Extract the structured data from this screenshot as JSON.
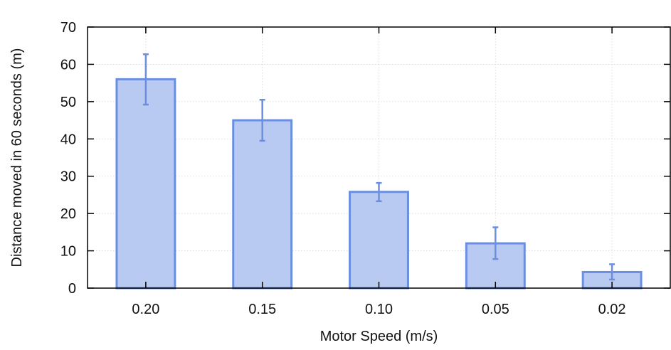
{
  "chart_data": {
    "type": "bar",
    "title": "",
    "xlabel": "Motor Speed (m/s)",
    "ylabel": "Distance moved in 60 seconds (m)",
    "categories": [
      "0.20",
      "0.15",
      "0.10",
      "0.05",
      "0.02"
    ],
    "values": [
      56,
      45,
      25.8,
      12,
      4.3
    ],
    "error_low": [
      49.2,
      39.5,
      23.3,
      7.8,
      2.3
    ],
    "error_high": [
      62.7,
      50.5,
      28.2,
      16.3,
      6.4
    ],
    "ylim": [
      0,
      70
    ],
    "yticks": [
      0,
      10,
      20,
      30,
      40,
      50,
      60,
      70
    ],
    "grid": true,
    "legend": "none",
    "bar_fill": "#b9caf2",
    "bar_edge": "#6b8fe0",
    "error_color": "#6b8fe0"
  }
}
